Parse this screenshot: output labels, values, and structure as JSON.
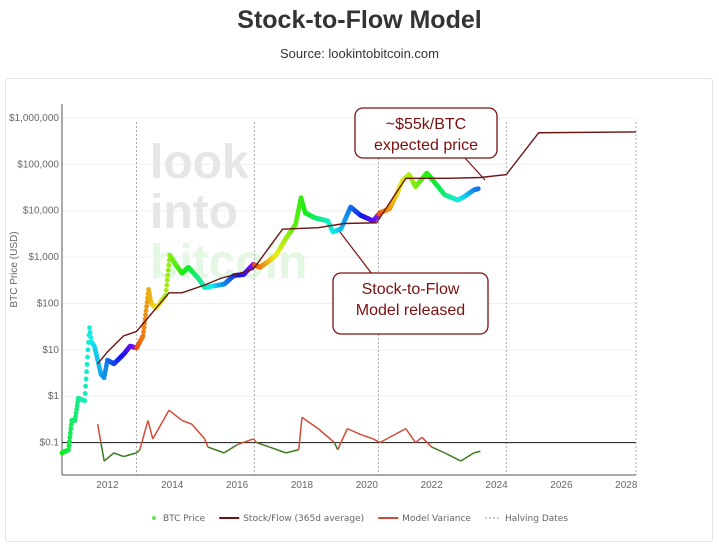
{
  "header": {
    "title": "Stock-to-Flow Model",
    "subtitle": "Source: lookintobitcoin.com"
  },
  "watermark": [
    "look",
    "into",
    "bitcoin"
  ],
  "chart_data": {
    "type": "scatter",
    "ylabel": "BTC Price (USD)",
    "yscale": "log",
    "ylim": [
      0.02,
      2000000
    ],
    "xlim": [
      2010.6,
      2028.3
    ],
    "yticks": [
      {
        "v": 1000000,
        "label": "$1,000,000"
      },
      {
        "v": 100000,
        "label": "$100,000"
      },
      {
        "v": 10000,
        "label": "$10,000"
      },
      {
        "v": 1000,
        "label": "$1,000"
      },
      {
        "v": 100,
        "label": "$100"
      },
      {
        "v": 10,
        "label": "$10"
      },
      {
        "v": 1,
        "label": "$1"
      },
      {
        "v": 0.1,
        "label": "$0.1"
      }
    ],
    "xticks": [
      2012,
      2014,
      2016,
      2018,
      2020,
      2022,
      2024,
      2026,
      2028
    ],
    "halving_dates": [
      2012.9,
      2016.53,
      2020.36,
      2024.3,
      2028.3
    ],
    "variance_zero": 0.1,
    "legend": {
      "placement": "bottom",
      "items": [
        "BTC Price",
        "Stock/Flow (365d average)",
        "Model Variance",
        "Halving Dates"
      ]
    },
    "colors": {
      "s2f": "#6b1414",
      "variance_pos": "#d24b37",
      "variance_neg": "#3d7a20",
      "halving": "#999999",
      "legend_price": "#6ee05a"
    },
    "series": [
      {
        "name": "BTC Price",
        "points": [
          [
            2010.6,
            0.06
          ],
          [
            2010.8,
            0.07
          ],
          [
            2010.9,
            0.3
          ],
          [
            2011.0,
            0.3
          ],
          [
            2011.1,
            0.9
          ],
          [
            2011.3,
            0.8
          ],
          [
            2011.4,
            10
          ],
          [
            2011.45,
            30
          ],
          [
            2011.5,
            15
          ],
          [
            2011.6,
            12
          ],
          [
            2011.8,
            3
          ],
          [
            2011.9,
            2.5
          ],
          [
            2012.0,
            6
          ],
          [
            2012.2,
            5
          ],
          [
            2012.5,
            8
          ],
          [
            2012.7,
            12
          ],
          [
            2012.9,
            11
          ],
          [
            2013.1,
            20
          ],
          [
            2013.27,
            200
          ],
          [
            2013.35,
            100
          ],
          [
            2013.5,
            80
          ],
          [
            2013.8,
            150
          ],
          [
            2013.92,
            1100
          ],
          [
            2014.1,
            700
          ],
          [
            2014.3,
            450
          ],
          [
            2014.5,
            600
          ],
          [
            2014.8,
            350
          ],
          [
            2015.0,
            220
          ],
          [
            2015.3,
            240
          ],
          [
            2015.6,
            260
          ],
          [
            2015.9,
            400
          ],
          [
            2016.2,
            420
          ],
          [
            2016.5,
            700
          ],
          [
            2016.7,
            600
          ],
          [
            2016.9,
            750
          ],
          [
            2017.2,
            1100
          ],
          [
            2017.5,
            2500
          ],
          [
            2017.8,
            5000
          ],
          [
            2017.97,
            19000
          ],
          [
            2018.1,
            9000
          ],
          [
            2018.4,
            7000
          ],
          [
            2018.8,
            6000
          ],
          [
            2018.95,
            3500
          ],
          [
            2019.2,
            4000
          ],
          [
            2019.5,
            12000
          ],
          [
            2019.8,
            8000
          ],
          [
            2020.2,
            6000
          ],
          [
            2020.4,
            9000
          ],
          [
            2020.7,
            11000
          ],
          [
            2020.95,
            25000
          ],
          [
            2021.1,
            45000
          ],
          [
            2021.3,
            60000
          ],
          [
            2021.5,
            33000
          ],
          [
            2021.85,
            65000
          ],
          [
            2022.1,
            40000
          ],
          [
            2022.4,
            22000
          ],
          [
            2022.8,
            17000
          ],
          [
            2023.0,
            20000
          ],
          [
            2023.3,
            28000
          ],
          [
            2023.45,
            30000
          ]
        ]
      },
      {
        "name": "Stock/Flow (365d average)",
        "points": [
          [
            2011.7,
            5
          ],
          [
            2012.0,
            9
          ],
          [
            2012.5,
            20
          ],
          [
            2012.9,
            25
          ],
          [
            2013.9,
            170
          ],
          [
            2014.3,
            170
          ],
          [
            2015.0,
            250
          ],
          [
            2015.5,
            350
          ],
          [
            2016.0,
            430
          ],
          [
            2016.5,
            550
          ],
          [
            2017.4,
            4000
          ],
          [
            2018.5,
            4300
          ],
          [
            2019.3,
            5300
          ],
          [
            2020.3,
            5500
          ],
          [
            2021.2,
            50000
          ],
          [
            2022.5,
            50000
          ],
          [
            2023.5,
            52000
          ],
          [
            2024.3,
            60000
          ],
          [
            2025.3,
            480000
          ],
          [
            2028.3,
            500000
          ]
        ]
      },
      {
        "name": "Model Variance",
        "points": [
          [
            2011.7,
            0.25
          ],
          [
            2011.8,
            0.1
          ],
          [
            2011.9,
            0.04
          ],
          [
            2012.2,
            0.06
          ],
          [
            2012.5,
            0.05
          ],
          [
            2012.9,
            0.06
          ],
          [
            2013.0,
            0.07
          ],
          [
            2013.25,
            0.3
          ],
          [
            2013.4,
            0.12
          ],
          [
            2013.9,
            0.5
          ],
          [
            2014.3,
            0.3
          ],
          [
            2014.6,
            0.25
          ],
          [
            2015.0,
            0.12
          ],
          [
            2015.1,
            0.08
          ],
          [
            2015.6,
            0.06
          ],
          [
            2016.0,
            0.09
          ],
          [
            2016.5,
            0.12
          ],
          [
            2016.6,
            0.1
          ],
          [
            2017.0,
            0.08
          ],
          [
            2017.5,
            0.06
          ],
          [
            2017.9,
            0.07
          ],
          [
            2018.0,
            0.35
          ],
          [
            2018.5,
            0.2
          ],
          [
            2019.0,
            0.1
          ],
          [
            2019.1,
            0.07
          ],
          [
            2019.4,
            0.2
          ],
          [
            2019.8,
            0.15
          ],
          [
            2020.2,
            0.12
          ],
          [
            2020.4,
            0.1
          ],
          [
            2021.2,
            0.2
          ],
          [
            2021.5,
            0.1
          ],
          [
            2021.7,
            0.13
          ],
          [
            2022.0,
            0.08
          ],
          [
            2022.4,
            0.06
          ],
          [
            2022.9,
            0.04
          ],
          [
            2023.3,
            0.06
          ],
          [
            2023.5,
            0.065
          ]
        ]
      }
    ],
    "annotations": [
      {
        "text": [
          "~$55k/BTC",
          "expected price"
        ],
        "target": [
          2023.3,
          50000
        ]
      },
      {
        "text": [
          "Stock-to-Flow",
          "Model released"
        ],
        "target": [
          2019.4,
          5300
        ]
      }
    ]
  }
}
